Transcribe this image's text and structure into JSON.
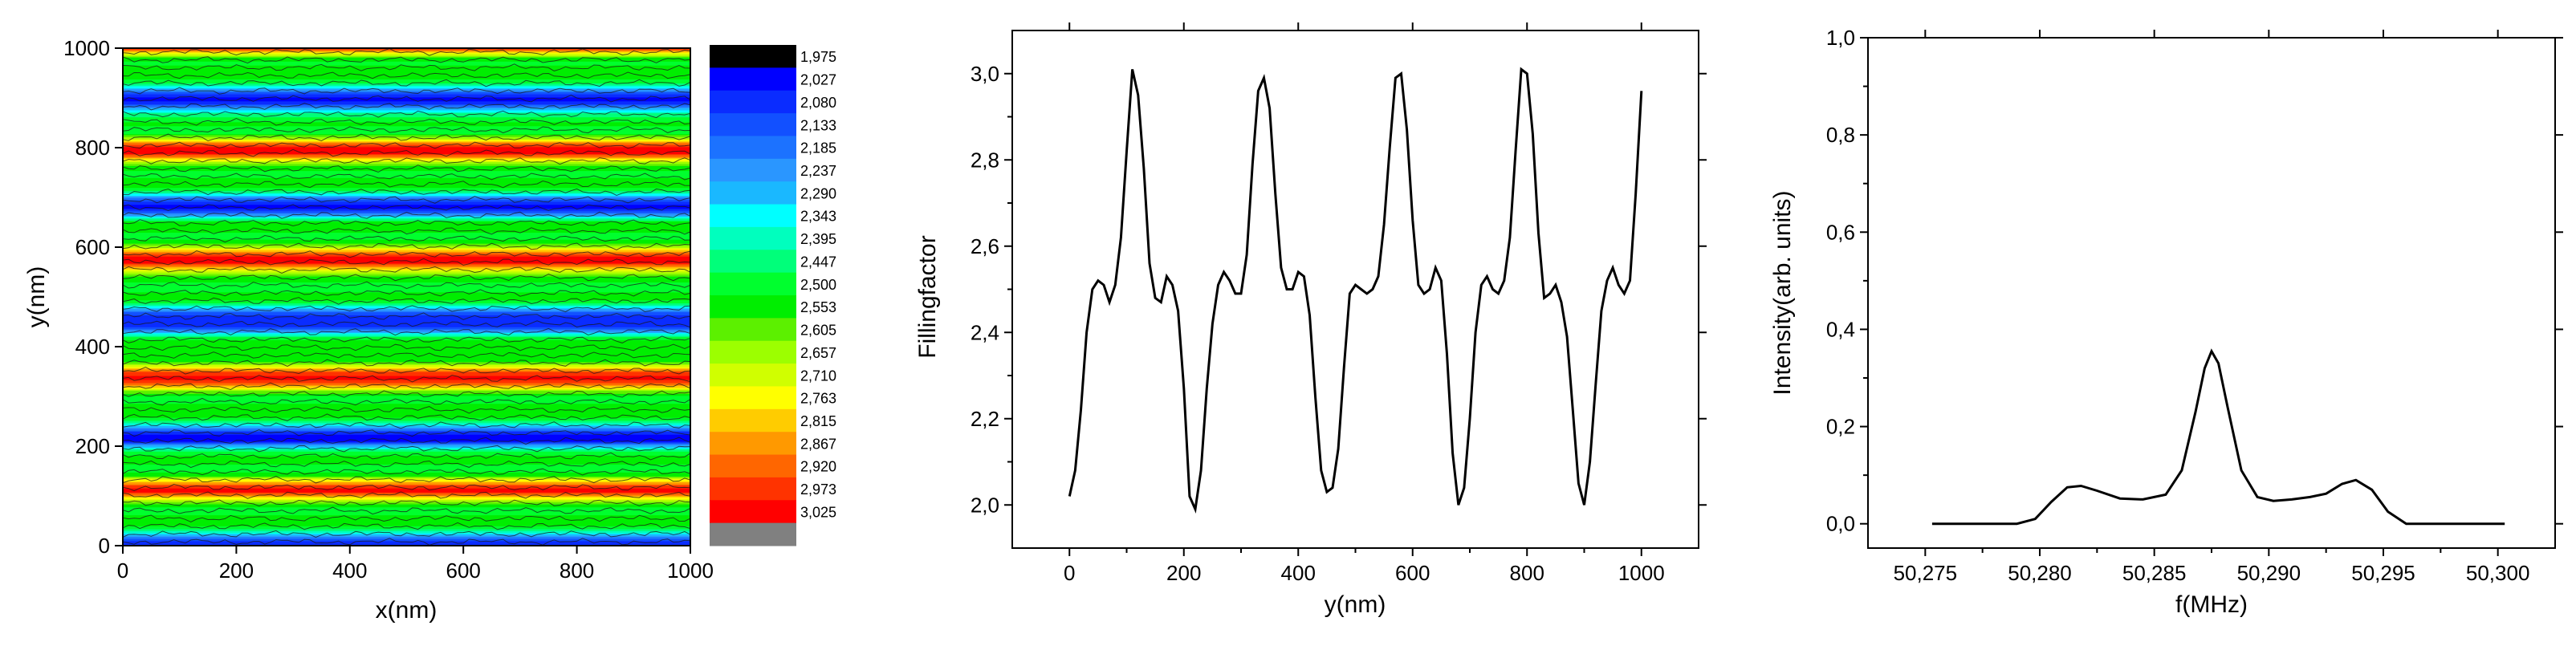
{
  "chart_data": [
    {
      "type": "heatmap",
      "xlabel": "x(nm)",
      "ylabel": "y(nm)",
      "xlim": [
        0,
        1000
      ],
      "ylim": [
        0,
        1000
      ],
      "x_ticks": [
        "0",
        "200",
        "400",
        "600",
        "800",
        "1000"
      ],
      "y_ticks": [
        "0",
        "200",
        "400",
        "600",
        "800",
        "1000"
      ],
      "pattern": "horizontal stripes with contour lines, value varies with y only",
      "colorbar": {
        "levels": [
          "1,975",
          "2,027",
          "2,080",
          "2,133",
          "2,185",
          "2,237",
          "2,290",
          "2,343",
          "2,395",
          "2,447",
          "2,500",
          "2,553",
          "2,605",
          "2,657",
          "2,710",
          "2,763",
          "2,815",
          "2,867",
          "2,920",
          "2,973",
          "3,025"
        ],
        "colors": [
          "#000000",
          "#0000ff",
          "#0a2cff",
          "#1250ff",
          "#1c72ff",
          "#2a96ff",
          "#1ab8ff",
          "#00ffff",
          "#00ffbe",
          "#00ff7a",
          "#00ff2e",
          "#00ee00",
          "#5cf000",
          "#9cff00",
          "#d0ff00",
          "#ffff00",
          "#ffcc00",
          "#ff9900",
          "#ff6600",
          "#ff3300",
          "#ff0000",
          "#808080"
        ]
      }
    },
    {
      "type": "line",
      "xlabel": "y(nm)",
      "ylabel": "Fillingfactor",
      "xlim": [
        -100,
        1100
      ],
      "ylim": [
        1.9,
        3.1
      ],
      "x_ticks": [
        0,
        200,
        400,
        600,
        800,
        1000
      ],
      "y_ticks": [
        2.0,
        2.2,
        2.4,
        2.6,
        2.8,
        3.0
      ],
      "y_tick_labels": [
        "2,0",
        "2,2",
        "2,4",
        "2,6",
        "2,8",
        "3,0"
      ],
      "series": [
        {
          "x": [
            0,
            10,
            20,
            30,
            40,
            50,
            60,
            70,
            80,
            90,
            100,
            110,
            120,
            130,
            140,
            150,
            160,
            170,
            180,
            190,
            200,
            210,
            220,
            230,
            240,
            250,
            260,
            270,
            280,
            290,
            300,
            310,
            320,
            330,
            340,
            350,
            360,
            370,
            380,
            390,
            400,
            410,
            420,
            430,
            440,
            450,
            460,
            470,
            480,
            490,
            500,
            510,
            520,
            530,
            540,
            550,
            560,
            570,
            580,
            590,
            600,
            610,
            620,
            630,
            640,
            650,
            660,
            670,
            680,
            690,
            700,
            710,
            720,
            730,
            740,
            750,
            760,
            770,
            780,
            790,
            800,
            810,
            820,
            830,
            840,
            850,
            860,
            870,
            880,
            890,
            900,
            910,
            920,
            930,
            940,
            950,
            960,
            970,
            980,
            990,
            1000
          ],
          "values": [
            2.02,
            2.08,
            2.22,
            2.4,
            2.5,
            2.52,
            2.51,
            2.47,
            2.51,
            2.62,
            2.82,
            3.01,
            2.95,
            2.78,
            2.56,
            2.48,
            2.47,
            2.53,
            2.51,
            2.45,
            2.27,
            2.02,
            1.99,
            2.08,
            2.27,
            2.42,
            2.51,
            2.54,
            2.52,
            2.49,
            2.49,
            2.58,
            2.79,
            2.96,
            2.99,
            2.92,
            2.72,
            2.55,
            2.5,
            2.5,
            2.54,
            2.53,
            2.44,
            2.25,
            2.08,
            2.03,
            2.04,
            2.13,
            2.32,
            2.49,
            2.51,
            2.5,
            2.49,
            2.5,
            2.53,
            2.65,
            2.83,
            2.99,
            3.0,
            2.87,
            2.66,
            2.51,
            2.49,
            2.5,
            2.55,
            2.52,
            2.35,
            2.12,
            2.0,
            2.04,
            2.2,
            2.4,
            2.51,
            2.53,
            2.5,
            2.49,
            2.52,
            2.62,
            2.82,
            3.01,
            3.0,
            2.86,
            2.63,
            2.48,
            2.49,
            2.51,
            2.47,
            2.39,
            2.22,
            2.05,
            2.0,
            2.1,
            2.28,
            2.45,
            2.52,
            2.55,
            2.51,
            2.49,
            2.52,
            2.72,
            2.96
          ]
        }
      ]
    },
    {
      "type": "line",
      "xlabel": "f(MHz)",
      "ylabel": "Intensity(arb. units)",
      "xlim": [
        50.2725,
        50.3025
      ],
      "ylim": [
        -0.05,
        1.0
      ],
      "x_ticks": [
        50.275,
        50.28,
        50.285,
        50.29,
        50.295,
        50.3
      ],
      "x_tick_labels": [
        "50,275",
        "50,280",
        "50,285",
        "50,290",
        "50,295",
        "50,300"
      ],
      "y_ticks": [
        0.0,
        0.2,
        0.4,
        0.6,
        0.8,
        1.0
      ],
      "y_tick_labels": [
        "0,0",
        "0,2",
        "0,4",
        "0,6",
        "0,8",
        "1,0"
      ],
      "series": [
        {
          "x": [
            50.2753,
            50.279,
            50.2798,
            50.2805,
            50.2812,
            50.2818,
            50.2825,
            50.2835,
            50.2845,
            50.2855,
            50.2862,
            50.2868,
            50.2872,
            50.2875,
            50.2878,
            50.2882,
            50.2888,
            50.2895,
            50.2902,
            50.291,
            50.2918,
            50.2925,
            50.2932,
            50.2938,
            50.2945,
            50.2952,
            50.296,
            50.3003
          ],
          "values": [
            0.0,
            0.0,
            0.01,
            0.045,
            0.075,
            0.078,
            0.068,
            0.052,
            0.05,
            0.06,
            0.11,
            0.23,
            0.32,
            0.355,
            0.33,
            0.24,
            0.11,
            0.055,
            0.047,
            0.05,
            0.055,
            0.062,
            0.082,
            0.09,
            0.07,
            0.025,
            0.0,
            0.0
          ]
        }
      ]
    }
  ]
}
